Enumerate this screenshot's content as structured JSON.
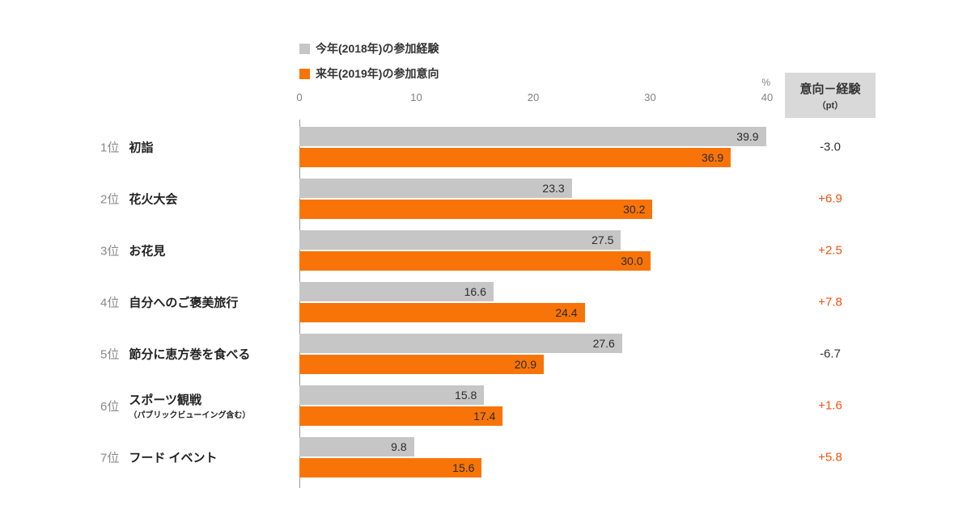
{
  "chart_data": {
    "type": "bar",
    "orientation": "horizontal",
    "legend": [
      {
        "name": "experience",
        "label": "今年(2018年)の参加経験"
      },
      {
        "name": "intention",
        "label": "来年(2019年)の参加意向"
      }
    ],
    "axis": {
      "unit": "%",
      "ticks": [
        0,
        10,
        20,
        30,
        40
      ],
      "max": 40
    },
    "diff_header": {
      "line1": "意向－経験",
      "line2": "（pt）"
    },
    "colors": {
      "experience_bar": "#c6c6c6",
      "intention_bar": "#f87408",
      "diff_positive": "#f4500c",
      "diff_negative": "#333333",
      "header_bg": "#d9d9d9"
    },
    "rows": [
      {
        "rank": "1位",
        "label": "初詣",
        "sublabel": "",
        "experience": 39.9,
        "intention": 36.9,
        "diff": "-3.0"
      },
      {
        "rank": "2位",
        "label": "花火大会",
        "sublabel": "",
        "experience": 23.3,
        "intention": 30.2,
        "diff": "+6.9"
      },
      {
        "rank": "3位",
        "label": "お花見",
        "sublabel": "",
        "experience": 27.5,
        "intention": 30.0,
        "diff": "+2.5"
      },
      {
        "rank": "4位",
        "label": "自分へのご褒美旅行",
        "sublabel": "",
        "experience": 16.6,
        "intention": 24.4,
        "diff": "+7.8"
      },
      {
        "rank": "5位",
        "label": "節分に恵方巻を食べる",
        "sublabel": "",
        "experience": 27.6,
        "intention": 20.9,
        "diff": "-6.7"
      },
      {
        "rank": "6位",
        "label": "スポーツ観戦",
        "sublabel": "（パブリックビューイング含む）",
        "experience": 15.8,
        "intention": 17.4,
        "diff": "+1.6"
      },
      {
        "rank": "7位",
        "label": "フード イベント",
        "sublabel": "",
        "experience": 9.8,
        "intention": 15.6,
        "diff": "+5.8"
      }
    ]
  }
}
